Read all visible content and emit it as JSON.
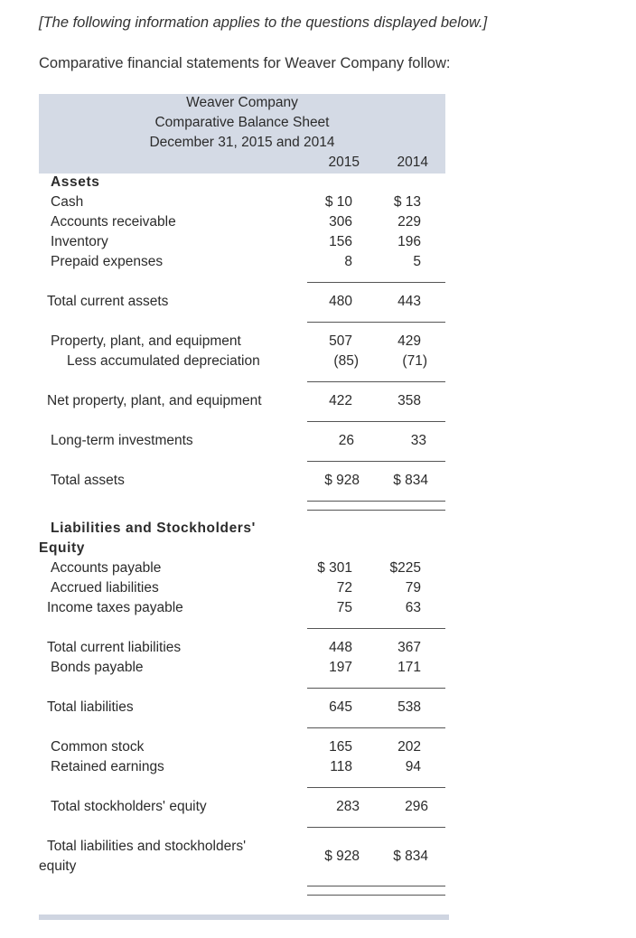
{
  "intro": {
    "note": "[The following information applies to the questions displayed below.]",
    "text": "Comparative financial statements for Weaver Company follow:"
  },
  "header": {
    "company": "Weaver Company",
    "statement": "Comparative Balance Sheet",
    "date": "December 31, 2015 and 2014",
    "col_2015": "2015",
    "col_2014": "2014"
  },
  "assets": {
    "title": "Assets",
    "cash": {
      "label": "Cash",
      "v2015": "$ 10",
      "v2014": "$ 13"
    },
    "ar": {
      "label": "Accounts receivable",
      "v2015": "306",
      "v2014": "229"
    },
    "inventory": {
      "label": "Inventory",
      "v2015": "156",
      "v2014": "196"
    },
    "prepaid": {
      "label": "Prepaid expenses",
      "v2015": "8",
      "v2014": "5"
    },
    "total_current": {
      "label": "Total current assets",
      "v2015": "480",
      "v2014": "443"
    },
    "ppe": {
      "label": "Property, plant, and equipment",
      "v2015": "507",
      "v2014": "429"
    },
    "accum_dep": {
      "label": "Less accumulated depreciation",
      "v2015": "(85)",
      "v2014": "(71)"
    },
    "net_ppe": {
      "label": "Net property, plant, and equipment",
      "v2015": "422",
      "v2014": "358"
    },
    "lt_investments": {
      "label": "Long-term investments",
      "v2015": "26",
      "v2014": "33"
    },
    "total_assets": {
      "label": "Total assets",
      "v2015": "$ 928",
      "v2014": "$ 834"
    }
  },
  "liabilities": {
    "title_line1": "Liabilities and Stockholders'",
    "title_line2": "Equity",
    "ap": {
      "label": "Accounts payable",
      "v2015": "$ 301",
      "v2014": "$225"
    },
    "accrued": {
      "label": "Accrued liabilities",
      "v2015": "72",
      "v2014": "79"
    },
    "income_tax": {
      "label": "Income taxes payable",
      "v2015": "75",
      "v2014": "63"
    },
    "total_current": {
      "label": "Total current liabilities",
      "v2015": "448",
      "v2014": "367"
    },
    "bonds": {
      "label": "Bonds payable",
      "v2015": "197",
      "v2014": "171"
    },
    "total_liabilities": {
      "label": "Total liabilities",
      "v2015": "645",
      "v2014": "538"
    },
    "common_stock": {
      "label": "Common stock",
      "v2015": "165",
      "v2014": "202"
    },
    "retained": {
      "label": "Retained earnings",
      "v2015": "118",
      "v2014": "94"
    },
    "total_se": {
      "label": "Total stockholders' equity",
      "v2015": "283",
      "v2014": "296"
    },
    "total_le_line1": "Total liabilities and stockholders'",
    "total_le_line2": "equity",
    "total_le": {
      "v2015": "$ 928",
      "v2014": "$ 834"
    }
  }
}
